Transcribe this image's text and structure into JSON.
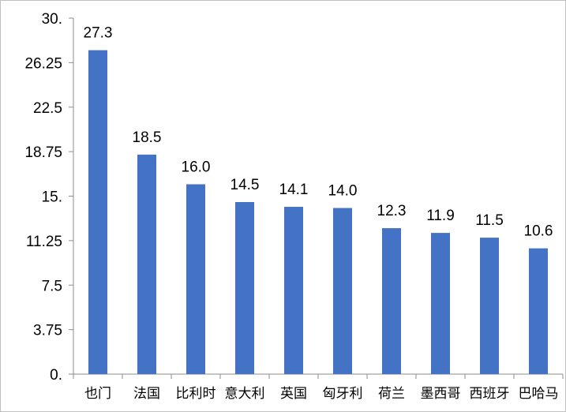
{
  "chart_data": {
    "type": "bar",
    "title": "",
    "xlabel": "",
    "ylabel": "",
    "categories": [
      "也门",
      "法国",
      "比利时",
      "意大利",
      "英国",
      "匈牙利",
      "荷兰",
      "墨西哥",
      "西班牙",
      "巴哈马"
    ],
    "values": [
      27.3,
      18.5,
      16.0,
      14.5,
      14.1,
      14.0,
      12.3,
      11.9,
      11.5,
      10.6
    ],
    "data_labels": [
      "27.3",
      "18.5",
      "16.0",
      "14.5",
      "14.1",
      "14.0",
      "12.3",
      "11.9",
      "11.5",
      "10.6"
    ],
    "ylim": [
      0,
      30
    ],
    "yticks": [
      0,
      3.75,
      7.5,
      11.25,
      15,
      18.75,
      22.5,
      26.25,
      30
    ],
    "ytick_labels": [
      "0.",
      "3.75",
      "7.5",
      "11.25",
      "15.",
      "18.75",
      "22.5",
      "26.25",
      "30."
    ],
    "bar_color": "#4472c4",
    "grid": false,
    "legend": "none"
  }
}
